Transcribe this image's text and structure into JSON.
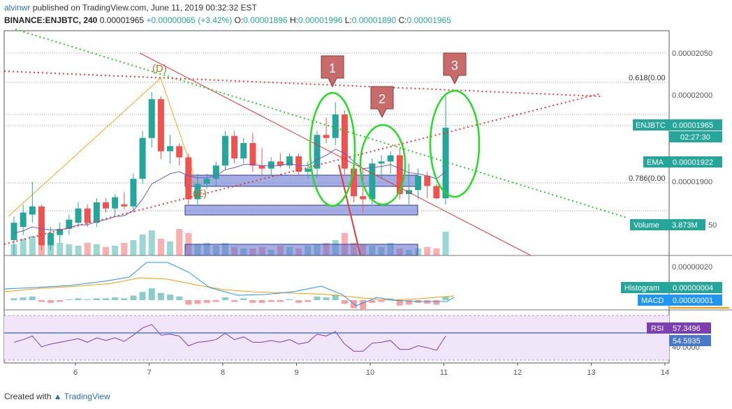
{
  "header": {
    "author": "alvinwr",
    "published_text": "published on TradingView.com, June 11, 2019 00:32:32 EST",
    "symbol": "BINANCE:ENJBTC, 240",
    "last_price": "0.00001965",
    "change": "+0.00000065 (+3.42%)",
    "o_label": "O:",
    "o_value": "0.00001896",
    "h_label": "H:",
    "h_value": "0.00001996",
    "l_label": "L:",
    "l_value": "0.00001890",
    "c_label": "C:",
    "c_value": "0.00001965"
  },
  "price_axis": [
    "0.00002050",
    "0.00002000",
    "0.00001900"
  ],
  "macd_axis": [
    "0.00000020"
  ],
  "rsi_axis": [
    "40.0000"
  ],
  "x_axis": [
    "6",
    "7",
    "8",
    "9",
    "10",
    "11",
    "12",
    "13",
    "14"
  ],
  "fib_labels": [
    "0.618(0.00",
    "0.786(0.00"
  ],
  "wave_labels": [
    "(D)",
    "(E)"
  ],
  "markers": [
    "1",
    "2",
    "3"
  ],
  "tags": {
    "symbol_name": "ENJBTC",
    "symbol_value": "0.00001965",
    "countdown": "02:27:30",
    "ema_name": "EMA",
    "ema_value": "0.00001922",
    "volume_name": "Volume",
    "volume_value": "3.873M",
    "volume_tail": "50",
    "hist_name": "Histogram",
    "hist_value": "0.00000004",
    "macd_name": "MACD",
    "macd_value": "0.00000001",
    "rsi_name": "RSI",
    "rsi_value": "57.3496",
    "rsi_ma_value": "54.5935"
  },
  "colors": {
    "up": "#26a69a",
    "down": "#ef5350",
    "ema": "#6a5acd",
    "rsi": "#7b3fb0",
    "highlight": "#22dd22",
    "marker": "#c86b6b",
    "zone": "#5a6ccf"
  },
  "chart_data": {
    "type": "candlestick",
    "symbol": "BINANCE:ENJBTC",
    "interval": "240",
    "x_ticks": [
      "6",
      "7",
      "8",
      "9",
      "10",
      "11",
      "12",
      "13",
      "14"
    ],
    "price_range": [
      1.84e-05,
      2.06e-05
    ],
    "candles": [
      {
        "o": 1.855e-05,
        "h": 1.878e-05,
        "l": 1.84e-05,
        "c": 1.872e-05
      },
      {
        "o": 1.868e-05,
        "h": 1.89e-05,
        "l": 1.86e-05,
        "c": 1.882e-05
      },
      {
        "o": 1.88e-05,
        "h": 1.912e-05,
        "l": 1.872e-05,
        "c": 1.888e-05
      },
      {
        "o": 1.888e-05,
        "h": 1.89e-05,
        "l": 1.845e-05,
        "c": 1.85e-05
      },
      {
        "o": 1.85e-05,
        "h": 1.868e-05,
        "l": 1.845e-05,
        "c": 1.862e-05
      },
      {
        "o": 1.86e-05,
        "h": 1.872e-05,
        "l": 1.852e-05,
        "c": 1.866e-05
      },
      {
        "o": 1.866e-05,
        "h": 1.88e-05,
        "l": 1.86e-05,
        "c": 1.875e-05
      },
      {
        "o": 1.872e-05,
        "h": 1.892e-05,
        "l": 1.868e-05,
        "c": 1.886e-05
      },
      {
        "o": 1.886e-05,
        "h": 1.89e-05,
        "l": 1.868e-05,
        "c": 1.872e-05
      },
      {
        "o": 1.872e-05,
        "h": 1.896e-05,
        "l": 1.868e-05,
        "c": 1.892e-05
      },
      {
        "o": 1.892e-05,
        "h": 1.896e-05,
        "l": 1.882e-05,
        "c": 1.886e-05
      },
      {
        "o": 1.886e-05,
        "h": 1.9e-05,
        "l": 1.878e-05,
        "c": 1.897e-05
      },
      {
        "o": 1.89e-05,
        "h": 1.902e-05,
        "l": 1.885e-05,
        "c": 1.888e-05
      },
      {
        "o": 1.888e-05,
        "h": 1.92e-05,
        "l": 1.882e-05,
        "c": 1.915e-05
      },
      {
        "o": 1.915e-05,
        "h": 1.962e-05,
        "l": 1.91e-05,
        "c": 1.955e-05
      },
      {
        "o": 1.955e-05,
        "h": 2e-05,
        "l": 1.946e-05,
        "c": 1.993e-05
      },
      {
        "o": 1.993e-05,
        "h": 1.996e-05,
        "l": 1.934e-05,
        "c": 1.942e-05
      },
      {
        "o": 1.942e-05,
        "h": 1.958e-05,
        "l": 1.93e-05,
        "c": 1.947e-05
      },
      {
        "o": 1.947e-05,
        "h": 1.95e-05,
        "l": 1.928e-05,
        "c": 1.936e-05
      },
      {
        "o": 1.936e-05,
        "h": 1.94e-05,
        "l": 1.89e-05,
        "c": 1.895e-05
      },
      {
        "o": 1.895e-05,
        "h": 1.92e-05,
        "l": 1.89e-05,
        "c": 1.91e-05
      },
      {
        "o": 1.91e-05,
        "h": 1.92e-05,
        "l": 1.905e-05,
        "c": 1.915e-05
      },
      {
        "o": 1.915e-05,
        "h": 1.932e-05,
        "l": 1.908e-05,
        "c": 1.928e-05
      },
      {
        "o": 1.928e-05,
        "h": 1.962e-05,
        "l": 1.924e-05,
        "c": 1.957e-05
      },
      {
        "o": 1.957e-05,
        "h": 1.962e-05,
        "l": 1.93e-05,
        "c": 1.935e-05
      },
      {
        "o": 1.935e-05,
        "h": 1.955e-05,
        "l": 1.93e-05,
        "c": 1.95e-05
      },
      {
        "o": 1.95e-05,
        "h": 1.96e-05,
        "l": 1.922e-05,
        "c": 1.928e-05
      },
      {
        "o": 1.928e-05,
        "h": 1.945e-05,
        "l": 1.918e-05,
        "c": 1.925e-05
      },
      {
        "o": 1.925e-05,
        "h": 1.936e-05,
        "l": 1.918e-05,
        "c": 1.932e-05
      },
      {
        "o": 1.932e-05,
        "h": 1.94e-05,
        "l": 1.926e-05,
        "c": 1.928e-05
      },
      {
        "o": 1.928e-05,
        "h": 1.94e-05,
        "l": 1.925e-05,
        "c": 1.937e-05
      },
      {
        "o": 1.937e-05,
        "h": 1.94e-05,
        "l": 1.918e-05,
        "c": 1.922e-05
      },
      {
        "o": 1.922e-05,
        "h": 1.932e-05,
        "l": 1.915e-05,
        "c": 1.925e-05
      },
      {
        "o": 1.925e-05,
        "h": 1.962e-05,
        "l": 1.916e-05,
        "c": 1.958e-05
      },
      {
        "o": 1.958e-05,
        "h": 1.975e-05,
        "l": 1.95e-05,
        "c": 1.955e-05
      },
      {
        "o": 1.955e-05,
        "h": 1.99e-05,
        "l": 1.948e-05,
        "c": 1.978e-05
      },
      {
        "o": 1.978e-05,
        "h": 1.982e-05,
        "l": 1.918e-05,
        "c": 1.925e-05
      },
      {
        "o": 1.925e-05,
        "h": 1.93e-05,
        "l": 1.892e-05,
        "c": 1.898e-05
      },
      {
        "o": 1.898e-05,
        "h": 1.925e-05,
        "l": 1.882e-05,
        "c": 1.895e-05
      },
      {
        "o": 1.895e-05,
        "h": 1.935e-05,
        "l": 1.89e-05,
        "c": 1.93e-05
      },
      {
        "o": 1.93e-05,
        "h": 1.938e-05,
        "l": 1.915e-05,
        "c": 1.932e-05
      },
      {
        "o": 1.932e-05,
        "h": 1.942e-05,
        "l": 1.92e-05,
        "c": 1.938e-05
      },
      {
        "o": 1.938e-05,
        "h": 1.945e-05,
        "l": 1.895e-05,
        "c": 1.9e-05
      },
      {
        "o": 1.9e-05,
        "h": 1.93e-05,
        "l": 1.89e-05,
        "c": 1.904e-05
      },
      {
        "o": 1.904e-05,
        "h": 1.925e-05,
        "l": 1.895e-05,
        "c": 1.918e-05
      },
      {
        "o": 1.918e-05,
        "h": 1.922e-05,
        "l": 1.896e-05,
        "c": 1.908e-05
      },
      {
        "o": 1.908e-05,
        "h": 1.91e-05,
        "l": 1.895e-05,
        "c": 1.896e-05
      },
      {
        "o": 1.896e-05,
        "h": 1.996e-05,
        "l": 1.89e-05,
        "c": 1.965e-05
      }
    ],
    "volume": [
      0.8,
      1.2,
      1.4,
      1.5,
      1.0,
      0.9,
      0.8,
      0.7,
      0.9,
      0.8,
      0.6,
      0.7,
      0.9,
      1.1,
      1.5,
      1.8,
      1.2,
      1.0,
      1.9,
      1.6,
      0.8,
      0.9,
      0.7,
      0.9,
      0.6,
      0.5,
      0.5,
      0.6,
      0.4,
      0.7,
      0.6,
      0.5,
      0.7,
      0.8,
      0.9,
      1.1,
      1.6,
      0.9,
      0.8,
      0.7,
      0.6,
      0.9,
      0.5,
      0.4,
      0.5,
      0.6,
      0.5,
      1.7
    ],
    "ema": [
      1.862e-05,
      1.864e-05,
      1.868e-05,
      1.866e-05,
      1.865e-05,
      1.865e-05,
      1.867e-05,
      1.87e-05,
      1.87e-05,
      1.873e-05,
      1.875e-05,
      1.878e-05,
      1.879e-05,
      1.884e-05,
      1.895e-05,
      1.91e-05,
      1.915e-05,
      1.92e-05,
      1.922e-05,
      1.918e-05,
      1.916e-05,
      1.916e-05,
      1.918e-05,
      1.924e-05,
      1.926e-05,
      1.929e-05,
      1.929e-05,
      1.928e-05,
      1.928e-05,
      1.928e-05,
      1.93e-05,
      1.928e-05,
      1.928e-05,
      1.934e-05,
      1.938e-05,
      1.944e-05,
      1.94e-05,
      1.932e-05,
      1.925e-05,
      1.926e-05,
      1.927e-05,
      1.929e-05,
      1.925e-05,
      1.921e-05,
      1.92e-05,
      1.918e-05,
      1.915e-05,
      1.922e-05
    ],
    "macd_hist": [
      0.2,
      0.3,
      0.4,
      -0.2,
      -0.3,
      -0.2,
      0.1,
      0.2,
      0.1,
      0.2,
      0.2,
      0.3,
      0.2,
      0.5,
      0.9,
      1.3,
      0.8,
      0.6,
      0.4,
      -0.5,
      -0.4,
      -0.3,
      -0.2,
      0.3,
      -0.2,
      0.2,
      -0.3,
      -0.3,
      -0.2,
      -0.2,
      0.1,
      -0.3,
      -0.2,
      0.4,
      0.3,
      0.6,
      -0.4,
      -0.9,
      -1.0,
      -0.3,
      -0.2,
      0.2,
      -0.6,
      -0.5,
      -0.3,
      -0.4,
      -0.5,
      0.4
    ],
    "rsi": [
      50,
      53,
      57,
      45,
      48,
      50,
      52,
      54,
      50,
      55,
      52,
      55,
      51,
      58,
      66,
      70,
      58,
      59,
      57,
      46,
      50,
      51,
      53,
      60,
      53,
      56,
      50,
      50,
      52,
      50,
      53,
      48,
      50,
      59,
      57,
      62,
      48,
      40,
      40,
      49,
      50,
      52,
      42,
      42,
      46,
      44,
      41,
      57
    ],
    "rsi_ma": 54.5935
  }
}
